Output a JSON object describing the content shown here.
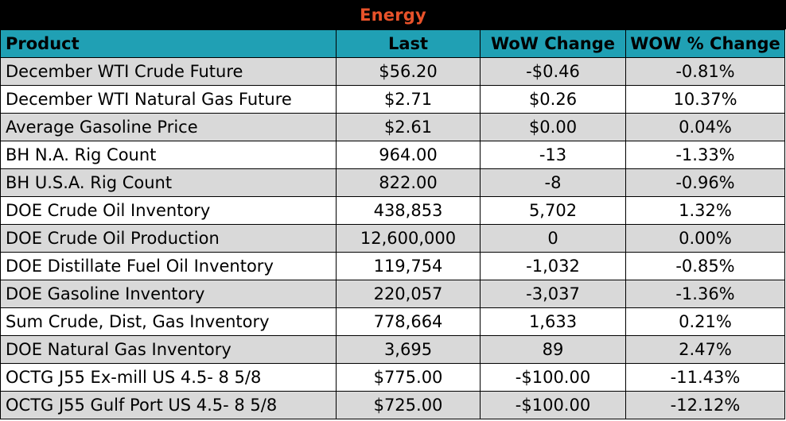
{
  "title": "Energy",
  "colors": {
    "title_bg": "#000000",
    "title_text": "#e8522a",
    "header_bg": "#20a0b4",
    "shaded_row": "#d9d9d9"
  },
  "headers": [
    "Product",
    "Last",
    "WoW Change",
    "WOW % Change"
  ],
  "rows": [
    [
      "December WTI Crude Future",
      "$56.20",
      "-$0.46",
      "-0.81%"
    ],
    [
      "December WTI Natural Gas Future",
      "$2.71",
      "$0.26",
      "10.37%"
    ],
    [
      "Average Gasoline Price",
      "$2.61",
      "$0.00",
      "0.04%"
    ],
    [
      "BH N.A. Rig Count",
      "964.00",
      "-13",
      "-1.33%"
    ],
    [
      "BH U.S.A. Rig Count",
      "822.00",
      "-8",
      "-0.96%"
    ],
    [
      "DOE Crude Oil Inventory",
      "438,853",
      "5,702",
      "1.32%"
    ],
    [
      "DOE Crude Oil Production",
      "12,600,000",
      "0",
      "0.00%"
    ],
    [
      "DOE Distillate Fuel Oil Inventory",
      "119,754",
      "-1,032",
      "-0.85%"
    ],
    [
      "DOE Gasoline Inventory",
      "220,057",
      "-3,037",
      "-1.36%"
    ],
    [
      "Sum Crude, Dist, Gas Inventory",
      "778,664",
      "1,633",
      "0.21%"
    ],
    [
      "DOE Natural Gas Inventory",
      "3,695",
      "89",
      "2.47%"
    ],
    [
      "OCTG J55 Ex-mill US 4.5- 8 5/8",
      "$775.00",
      "-$100.00",
      "-11.43%"
    ],
    [
      "OCTG J55 Gulf Port US 4.5- 8 5/8",
      "$725.00",
      "-$100.00",
      "-12.12%"
    ]
  ]
}
